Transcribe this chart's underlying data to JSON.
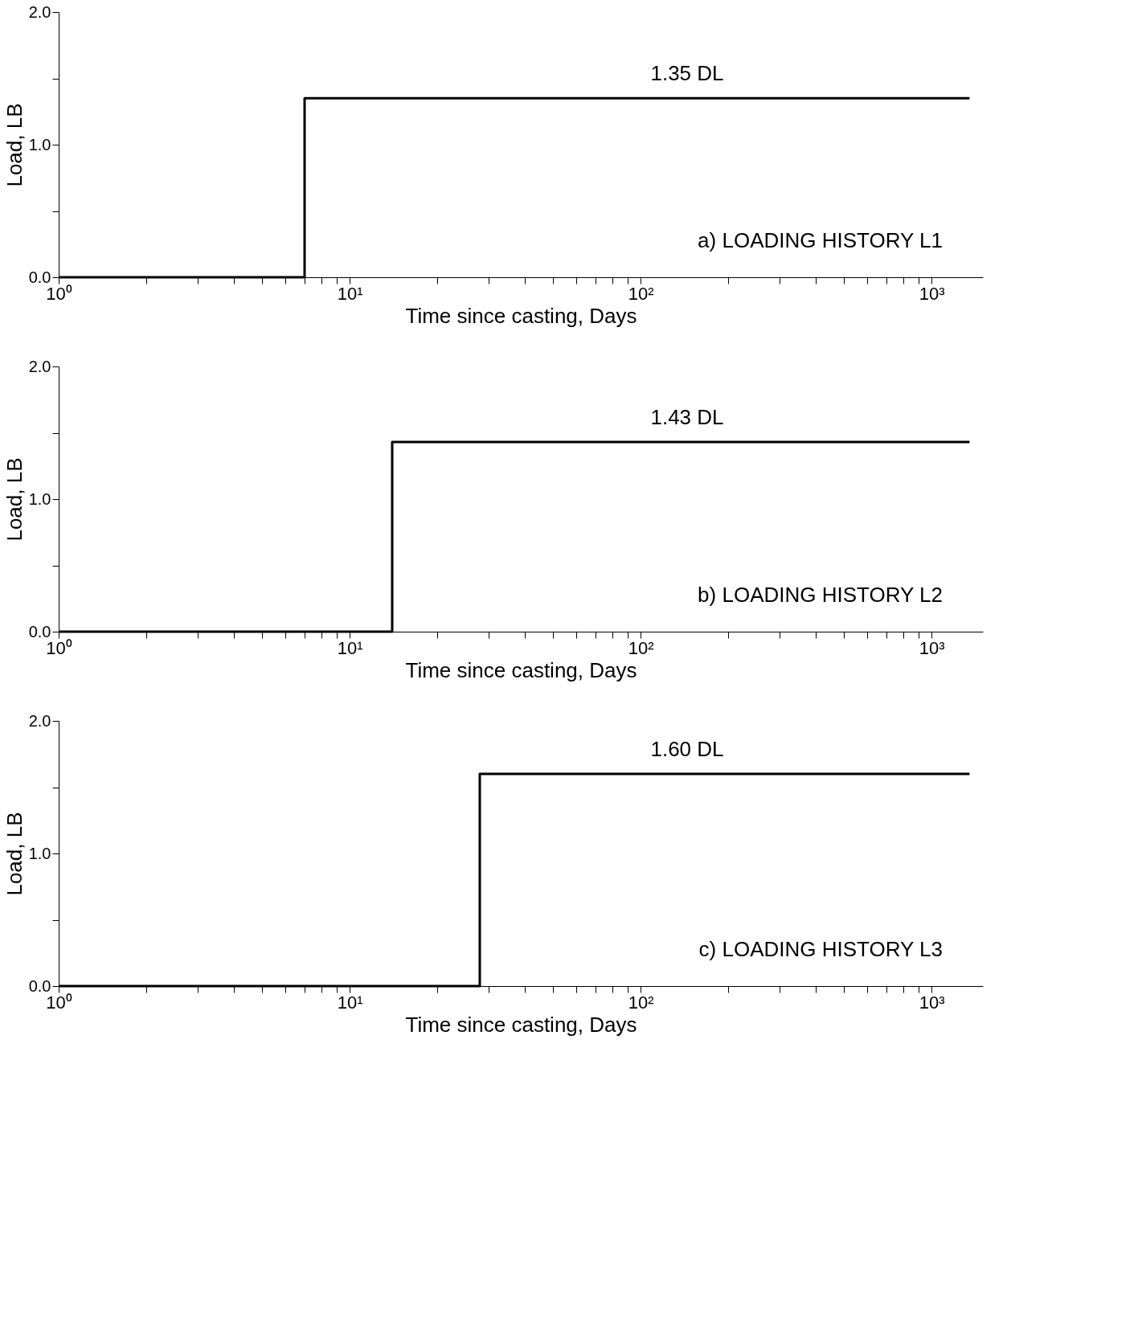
{
  "chart_data": [
    {
      "type": "step",
      "xlabel": "Time since casting, Days",
      "ylabel": "Load, LB",
      "log": "x",
      "grid": false,
      "line_style": "solid",
      "xlim": [
        1,
        1500
      ],
      "xticks": [
        {
          "value": 1,
          "label": "10⁰"
        },
        {
          "value": 2,
          "label": null
        },
        {
          "value": 3,
          "label": null
        },
        {
          "value": 4,
          "label": null
        },
        {
          "value": 5,
          "label": null
        },
        {
          "value": 6,
          "label": null
        },
        {
          "value": 7,
          "label": null
        },
        {
          "value": 8,
          "label": null
        },
        {
          "value": 9,
          "label": null
        },
        {
          "value": 10,
          "label": "10¹"
        },
        {
          "value": 20,
          "label": null
        },
        {
          "value": 30,
          "label": null
        },
        {
          "value": 40,
          "label": null
        },
        {
          "value": 50,
          "label": null
        },
        {
          "value": 60,
          "label": null
        },
        {
          "value": 70,
          "label": null
        },
        {
          "value": 80,
          "label": null
        },
        {
          "value": 90,
          "label": null
        },
        {
          "value": 100,
          "label": "10²"
        },
        {
          "value": 200,
          "label": null
        },
        {
          "value": 300,
          "label": null
        },
        {
          "value": 400,
          "label": null
        },
        {
          "value": 500,
          "label": null
        },
        {
          "value": 600,
          "label": null
        },
        {
          "value": 700,
          "label": null
        },
        {
          "value": 800,
          "label": null
        },
        {
          "value": 900,
          "label": null
        },
        {
          "value": 1000,
          "label": "10³"
        }
      ],
      "ylim": [
        0,
        2
      ],
      "yticks": [
        {
          "value": 0,
          "label": "0.0"
        },
        {
          "value": 0.5,
          "label": null
        },
        {
          "value": 1,
          "label": "1.0"
        },
        {
          "value": 1.5,
          "label": null
        },
        {
          "value": 2,
          "label": "2.0"
        }
      ],
      "series": [
        {
          "color": "#000000",
          "x": [
            1,
            7,
            1350
          ],
          "values": [
            0,
            1.35,
            1.35
          ]
        }
      ],
      "annotations": [
        {
          "text": "1.35 DL",
          "y": 1.35
        },
        "a) LOADING HISTORY L1"
      ]
    },
    {
      "type": "step",
      "xlabel": "Time since casting, Days",
      "ylabel": "Load, LB",
      "log": "x",
      "grid": false,
      "line_style": "solid",
      "xlim": [
        1,
        1500
      ],
      "xticks": [
        {
          "value": 1,
          "label": "10⁰"
        },
        {
          "value": 2,
          "label": null
        },
        {
          "value": 3,
          "label": null
        },
        {
          "value": 4,
          "label": null
        },
        {
          "value": 5,
          "label": null
        },
        {
          "value": 6,
          "label": null
        },
        {
          "value": 7,
          "label": null
        },
        {
          "value": 8,
          "label": null
        },
        {
          "value": 9,
          "label": null
        },
        {
          "value": 10,
          "label": "10¹"
        },
        {
          "value": 20,
          "label": null
        },
        {
          "value": 30,
          "label": null
        },
        {
          "value": 40,
          "label": null
        },
        {
          "value": 50,
          "label": null
        },
        {
          "value": 60,
          "label": null
        },
        {
          "value": 70,
          "label": null
        },
        {
          "value": 80,
          "label": null
        },
        {
          "value": 90,
          "label": null
        },
        {
          "value": 100,
          "label": "10²"
        },
        {
          "value": 200,
          "label": null
        },
        {
          "value": 300,
          "label": null
        },
        {
          "value": 400,
          "label": null
        },
        {
          "value": 500,
          "label": null
        },
        {
          "value": 600,
          "label": null
        },
        {
          "value": 700,
          "label": null
        },
        {
          "value": 800,
          "label": null
        },
        {
          "value": 900,
          "label": null
        },
        {
          "value": 1000,
          "label": "10³"
        }
      ],
      "ylim": [
        0,
        2
      ],
      "yticks": [
        {
          "value": 0,
          "label": "0.0"
        },
        {
          "value": 0.5,
          "label": null
        },
        {
          "value": 1,
          "label": "1.0"
        },
        {
          "value": 1.5,
          "label": null
        },
        {
          "value": 2,
          "label": "2.0"
        }
      ],
      "series": [
        {
          "color": "#000000",
          "x": [
            1,
            14,
            1350
          ],
          "values": [
            0,
            1.43,
            1.43
          ]
        }
      ],
      "annotations": [
        {
          "text": "1.43 DL",
          "y": 1.43
        },
        "b) LOADING HISTORY L2"
      ]
    },
    {
      "type": "step",
      "xlabel": "Time since casting, Days",
      "ylabel": "Load, LB",
      "log": "x",
      "grid": false,
      "line_style": "solid",
      "xlim": [
        1,
        1500
      ],
      "xticks": [
        {
          "value": 1,
          "label": "10⁰"
        },
        {
          "value": 2,
          "label": null
        },
        {
          "value": 3,
          "label": null
        },
        {
          "value": 4,
          "label": null
        },
        {
          "value": 5,
          "label": null
        },
        {
          "value": 6,
          "label": null
        },
        {
          "value": 7,
          "label": null
        },
        {
          "value": 8,
          "label": null
        },
        {
          "value": 9,
          "label": null
        },
        {
          "value": 10,
          "label": "10¹"
        },
        {
          "value": 20,
          "label": null
        },
        {
          "value": 30,
          "label": null
        },
        {
          "value": 40,
          "label": null
        },
        {
          "value": 50,
          "label": null
        },
        {
          "value": 60,
          "label": null
        },
        {
          "value": 70,
          "label": null
        },
        {
          "value": 80,
          "label": null
        },
        {
          "value": 90,
          "label": null
        },
        {
          "value": 100,
          "label": "10²"
        },
        {
          "value": 200,
          "label": null
        },
        {
          "value": 300,
          "label": null
        },
        {
          "value": 400,
          "label": null
        },
        {
          "value": 500,
          "label": null
        },
        {
          "value": 600,
          "label": null
        },
        {
          "value": 700,
          "label": null
        },
        {
          "value": 800,
          "label": null
        },
        {
          "value": 900,
          "label": null
        },
        {
          "value": 1000,
          "label": "10³"
        }
      ],
      "ylim": [
        0,
        2
      ],
      "yticks": [
        {
          "value": 0,
          "label": "0.0"
        },
        {
          "value": 0.5,
          "label": null
        },
        {
          "value": 1,
          "label": "1.0"
        },
        {
          "value": 1.5,
          "label": null
        },
        {
          "value": 2,
          "label": "2.0"
        }
      ],
      "series": [
        {
          "color": "#000000",
          "x": [
            1,
            28,
            1350
          ],
          "values": [
            0,
            1.6,
            1.6
          ]
        }
      ],
      "annotations": [
        {
          "text": "1.60 DL",
          "y": 1.6
        },
        "c) LOADING HISTORY L3"
      ]
    }
  ]
}
